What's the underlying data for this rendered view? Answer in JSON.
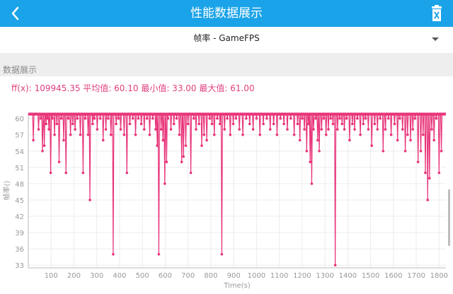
{
  "header": {
    "title": "性能数据展示",
    "back_icon": "back-arrow-icon",
    "delete_icon": "trash-icon",
    "color": "#1aa3e8"
  },
  "selector": {
    "label": "帧率 - GameFPS",
    "dropdown_icon": "dropdown-triangle-icon"
  },
  "section": {
    "title": "数据展示"
  },
  "stats": {
    "text": "ff(x): 109945.35 平均值: 60.10 最小值: 33.00 最大值: 61.00"
  },
  "chart_data": {
    "type": "line",
    "xlabel": "Time(s)",
    "ylabel": "帧率()",
    "xlim": [
      0,
      1830
    ],
    "ylim": [
      32.5,
      61
    ],
    "x_ticks": [
      100,
      200,
      300,
      400,
      500,
      600,
      700,
      800,
      900,
      1000,
      1100,
      1200,
      1300,
      1400,
      1500,
      1600,
      1700,
      1800
    ],
    "y_ticks": [
      33,
      36,
      39,
      42,
      45,
      48,
      51,
      54,
      57,
      60
    ],
    "series_color": "#e8347a",
    "baseline_value": 61,
    "dips": [
      [
        22,
        56
      ],
      [
        45,
        58
      ],
      [
        55,
        60
      ],
      [
        62,
        54
      ],
      [
        70,
        55
      ],
      [
        78,
        59
      ],
      [
        85,
        60
      ],
      [
        90,
        58
      ],
      [
        98,
        50
      ],
      [
        105,
        60
      ],
      [
        115,
        57
      ],
      [
        125,
        59
      ],
      [
        135,
        52
      ],
      [
        145,
        60
      ],
      [
        155,
        56
      ],
      [
        165,
        50
      ],
      [
        175,
        60
      ],
      [
        185,
        57
      ],
      [
        195,
        59
      ],
      [
        205,
        58
      ],
      [
        215,
        60
      ],
      [
        228,
        57
      ],
      [
        240,
        50
      ],
      [
        250,
        60
      ],
      [
        262,
        57
      ],
      [
        270,
        45
      ],
      [
        282,
        59
      ],
      [
        290,
        60
      ],
      [
        302,
        58
      ],
      [
        315,
        60
      ],
      [
        328,
        56
      ],
      [
        340,
        58
      ],
      [
        350,
        60
      ],
      [
        362,
        57
      ],
      [
        372,
        35
      ],
      [
        385,
        59
      ],
      [
        395,
        60
      ],
      [
        405,
        58
      ],
      [
        420,
        57
      ],
      [
        432,
        50
      ],
      [
        445,
        59
      ],
      [
        458,
        60
      ],
      [
        470,
        57
      ],
      [
        482,
        60
      ],
      [
        495,
        59
      ],
      [
        508,
        58
      ],
      [
        520,
        60
      ],
      [
        532,
        57
      ],
      [
        545,
        60
      ],
      [
        558,
        58
      ],
      [
        565,
        55
      ],
      [
        572,
        35
      ],
      [
        582,
        58
      ],
      [
        590,
        56
      ],
      [
        598,
        48
      ],
      [
        606,
        52
      ],
      [
        612,
        60
      ],
      [
        625,
        58
      ],
      [
        638,
        59
      ],
      [
        650,
        60
      ],
      [
        662,
        57
      ],
      [
        672,
        52
      ],
      [
        680,
        53
      ],
      [
        690,
        55
      ],
      [
        700,
        59
      ],
      [
        712,
        50
      ],
      [
        725,
        60
      ],
      [
        735,
        58
      ],
      [
        748,
        59
      ],
      [
        760,
        55
      ],
      [
        770,
        57
      ],
      [
        782,
        56
      ],
      [
        795,
        60
      ],
      [
        805,
        59
      ],
      [
        815,
        57
      ],
      [
        828,
        60
      ],
      [
        840,
        59
      ],
      [
        848,
        35
      ],
      [
        860,
        58
      ],
      [
        872,
        60
      ],
      [
        885,
        57
      ],
      [
        898,
        59
      ],
      [
        910,
        60
      ],
      [
        925,
        58
      ],
      [
        940,
        57
      ],
      [
        955,
        60
      ],
      [
        970,
        59
      ],
      [
        985,
        58
      ],
      [
        1000,
        60
      ],
      [
        1015,
        57
      ],
      [
        1030,
        59
      ],
      [
        1045,
        60
      ],
      [
        1060,
        58
      ],
      [
        1075,
        59
      ],
      [
        1090,
        57
      ],
      [
        1105,
        60
      ],
      [
        1120,
        59
      ],
      [
        1135,
        58
      ],
      [
        1150,
        60
      ],
      [
        1165,
        57
      ],
      [
        1180,
        59
      ],
      [
        1190,
        56
      ],
      [
        1200,
        60
      ],
      [
        1210,
        58
      ],
      [
        1220,
        54
      ],
      [
        1228,
        59
      ],
      [
        1235,
        52
      ],
      [
        1242,
        48
      ],
      [
        1250,
        58
      ],
      [
        1260,
        60
      ],
      [
        1268,
        56
      ],
      [
        1275,
        54
      ],
      [
        1285,
        58
      ],
      [
        1295,
        60
      ],
      [
        1305,
        57
      ],
      [
        1315,
        58
      ],
      [
        1325,
        60
      ],
      [
        1335,
        59
      ],
      [
        1345,
        33
      ],
      [
        1355,
        58
      ],
      [
        1365,
        60
      ],
      [
        1375,
        59
      ],
      [
        1385,
        58
      ],
      [
        1395,
        60
      ],
      [
        1408,
        56
      ],
      [
        1420,
        59
      ],
      [
        1430,
        58
      ],
      [
        1442,
        60
      ],
      [
        1455,
        57
      ],
      [
        1468,
        59
      ],
      [
        1478,
        60
      ],
      [
        1490,
        58
      ],
      [
        1505,
        55
      ],
      [
        1518,
        59
      ],
      [
        1530,
        58
      ],
      [
        1542,
        60
      ],
      [
        1555,
        54
      ],
      [
        1565,
        58
      ],
      [
        1578,
        60
      ],
      [
        1590,
        57
      ],
      [
        1605,
        59
      ],
      [
        1618,
        56
      ],
      [
        1628,
        60
      ],
      [
        1640,
        58
      ],
      [
        1652,
        54
      ],
      [
        1662,
        57
      ],
      [
        1675,
        56
      ],
      [
        1685,
        58
      ],
      [
        1695,
        60
      ],
      [
        1708,
        52
      ],
      [
        1720,
        54
      ],
      [
        1730,
        57
      ],
      [
        1740,
        50
      ],
      [
        1750,
        45
      ],
      [
        1758,
        49
      ],
      [
        1768,
        58
      ],
      [
        1778,
        56
      ],
      [
        1788,
        60
      ],
      [
        1800,
        50
      ],
      [
        1810,
        54
      ]
    ]
  }
}
